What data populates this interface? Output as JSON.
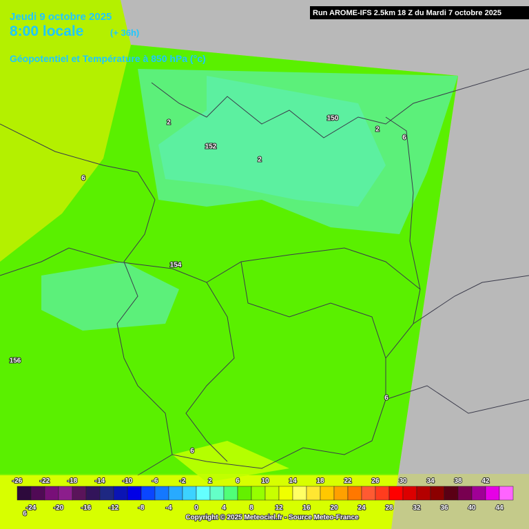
{
  "header": {
    "date": "Jeudi 9 octobre 2025",
    "time": "8:00 locale",
    "lead": "(+ 36h)",
    "field": "Géopotentiel et Température à 850 hPa (°c)",
    "run": "Run AROME-IFS 2.5km 18 Z du Mardi 7 octobre 2025"
  },
  "map_labels": [
    "2",
    "152",
    "2",
    "150",
    "2",
    "6",
    "6",
    "154",
    "156",
    "6",
    "6",
    "6"
  ],
  "scale": {
    "top_labels": [
      -26,
      -22,
      -18,
      -14,
      -10,
      -6,
      -2,
      2,
      6,
      10,
      14,
      18,
      22,
      26,
      30,
      34,
      38,
      42
    ],
    "bottom_labels": [
      -24,
      -20,
      -16,
      -12,
      -8,
      -4,
      0,
      4,
      8,
      12,
      16,
      20,
      24,
      28,
      32,
      36,
      40,
      44
    ],
    "colors": [
      "#2d0a3c",
      "#500a55",
      "#780f78",
      "#8c1e8c",
      "#5a145a",
      "#32145a",
      "#1e2882",
      "#0a14b4",
      "#0000e6",
      "#0a46ff",
      "#1478ff",
      "#28aaff",
      "#3cd2ff",
      "#64ffff",
      "#64ffc8",
      "#50ff78",
      "#64f000",
      "#96ff00",
      "#c8ff00",
      "#f0ff00",
      "#ffff64",
      "#ffe632",
      "#ffc800",
      "#ffa000",
      "#ff7800",
      "#ff5a32",
      "#ff3c1e",
      "#ff0000",
      "#dc0000",
      "#b40000",
      "#8c0000",
      "#5a0014",
      "#780050",
      "#a00096",
      "#e600e6",
      "#ff64ff"
    ]
  },
  "copyright": "Copyright © 2025 Meteociel.fr - Source Meteo-France"
}
